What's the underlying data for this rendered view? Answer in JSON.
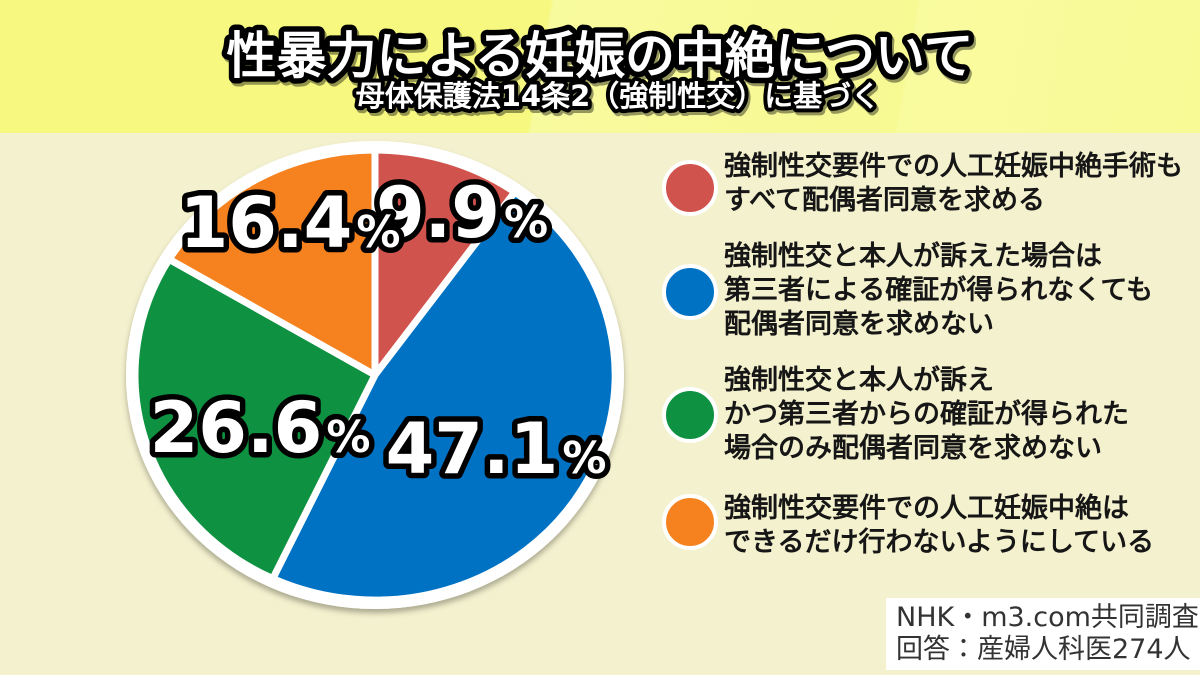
{
  "header": {
    "title": "性暴力による妊娠の中絶について",
    "subtitle": "母体保護法14条2（強制性交）に基づく"
  },
  "chart_data": {
    "type": "pie",
    "title": "性暴力による妊娠の中絶について",
    "subtitle": "母体保護法14条2（強制性交）に基づく",
    "unit": "%",
    "start_angle": "12-oclock",
    "direction": "clockwise",
    "legend_position": "right",
    "slices": [
      {
        "label": "強制性交要件での人工妊娠中絶手術もすべて配偶者同意を求める",
        "value": 9.9,
        "color": "#d1534e"
      },
      {
        "label": "強制性交と本人が訴えた場合は第三者による確証が得られなくても配偶者同意を求めない",
        "value": 47.1,
        "color": "#0072c4"
      },
      {
        "label": "強制性交と本人が訴えかつ第三者からの確証が得られた場合のみ配偶者同意を求めない",
        "value": 26.6,
        "color": "#0e9140"
      },
      {
        "label": "強制性交要件での人工妊娠中絶はできるだけ行わないようにしている",
        "value": 16.4,
        "color": "#f6821f"
      }
    ]
  },
  "legend": {
    "items": [
      {
        "color": "#d1534e",
        "lines": [
          "強制性交要件での人工妊娠中絶手術も",
          "すべて配偶者同意を求める"
        ]
      },
      {
        "color": "#0072c4",
        "lines": [
          "強制性交と本人が訴えた場合は",
          "第三者による確証が得られなくても",
          "配偶者同意を求めない"
        ]
      },
      {
        "color": "#0e9140",
        "lines": [
          "強制性交と本人が訴え",
          "かつ第三者からの確証が得られた",
          "場合のみ配偶者同意を求めない"
        ]
      },
      {
        "color": "#f6821f",
        "lines": [
          "強制性交要件での人工妊娠中絶は",
          "できるだけ行わないようにしている"
        ]
      }
    ]
  },
  "source": {
    "line1": "NHK・m3.com共同調査",
    "line2": "回答：産婦人科医274人"
  }
}
